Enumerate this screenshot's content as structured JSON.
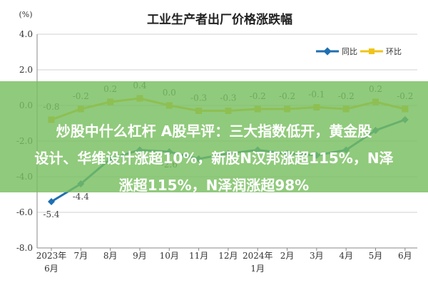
{
  "chart_data": {
    "type": "line",
    "title": "工业生产者出厂价格涨跌幅",
    "unit_label": "(%)",
    "categories": [
      "2023年6月",
      "7月",
      "8月",
      "9月",
      "10月",
      "11月",
      "12月",
      "2024年1月",
      "2月",
      "3月",
      "4月",
      "5月",
      "6月"
    ],
    "category_lines": [
      [
        "2023年",
        "6月"
      ],
      [
        "7月"
      ],
      [
        "8月"
      ],
      [
        "9月"
      ],
      [
        "10月"
      ],
      [
        "11月"
      ],
      [
        "12月"
      ],
      [
        "2024年",
        "1月"
      ],
      [
        "2月"
      ],
      [
        "3月"
      ],
      [
        "4月"
      ],
      [
        "5月"
      ],
      [
        "6月"
      ]
    ],
    "ylim": [
      -8.0,
      4.0
    ],
    "yticks": [
      "4.0",
      "2.0",
      "0.0",
      "-2.0",
      "-4.0",
      "-6.0",
      "-8.0"
    ],
    "grid": true,
    "legend_position": "top-right",
    "series": [
      {
        "name": "同比",
        "color": "#1f6fb2",
        "values": [
          -5.4,
          -4.4,
          -3.0,
          -2.5,
          -2.6,
          -3.0,
          -2.7,
          -2.5,
          -2.7,
          -2.8,
          -2.5,
          -1.4,
          -0.8
        ],
        "labels": [
          "-5.4",
          "-4.4",
          "",
          "",
          "-2.6",
          "",
          "",
          "",
          "",
          "",
          "",
          "",
          ""
        ]
      },
      {
        "name": "环比",
        "color": "#f0c419",
        "values": [
          -0.8,
          -0.2,
          0.2,
          0.4,
          0.0,
          -0.3,
          -0.3,
          -0.2,
          -0.2,
          -0.1,
          -0.2,
          0.2,
          -0.2
        ],
        "labels": [
          "-0.8",
          "-0.2",
          "0.2",
          "0.4",
          "0.0",
          "-0.3",
          "-0.3",
          "-0.2",
          "-0.2",
          "-0.1",
          "-0.2",
          "0.2",
          "-0.2"
        ]
      }
    ]
  },
  "overlay": {
    "line1": "炒股中什么杠杆 A股早评：三大指数低开，黄金股",
    "line2": "设计、华维设计涨超10%，新股N汉邦涨超115%，N泽",
    "line3": "涨超115%，N泽润涨超98%"
  }
}
